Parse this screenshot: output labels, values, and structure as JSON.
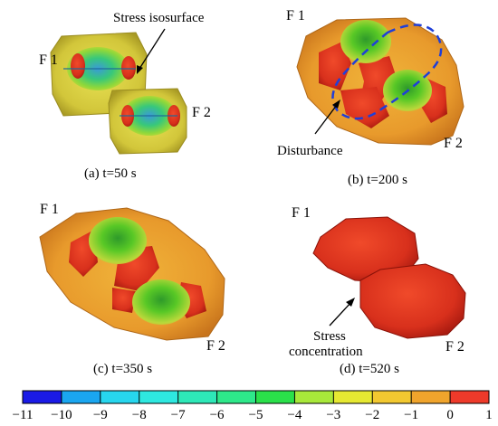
{
  "panels": [
    {
      "caption": "(a) t=50 s",
      "f1": "F 1",
      "f2": "F 2",
      "annotation": "Stress isosurface"
    },
    {
      "caption": "(b) t=200 s",
      "f1": "F 1",
      "f2": "F 2",
      "annotation": "Disturbance"
    },
    {
      "caption": "(c) t=350 s",
      "f1": "F 1",
      "f2": "F 2"
    },
    {
      "caption": "(d) t=520 s",
      "f1": "F 1",
      "f2": "F 2",
      "annotation_lines": [
        "Stress",
        "concentration"
      ]
    }
  ],
  "colorbar": {
    "ticks": [
      "−11",
      "−10",
      "−9",
      "−8",
      "−7",
      "−6",
      "−5",
      "−4",
      "−3",
      "−2",
      "−1",
      "0",
      "1"
    ],
    "colors": [
      "#1a1ae6",
      "#1aa6f0",
      "#27d6ee",
      "#2ee8e0",
      "#2ee8b8",
      "#2ee88a",
      "#2ae04a",
      "#a8e83a",
      "#e6e832",
      "#f2c830",
      "#f0a42c",
      "#ee3a2a"
    ]
  },
  "colors": {
    "isosurface_yellow": "#d8d23a",
    "orange": "#e8a02c",
    "red": "#e8321e",
    "green": "#5ad02a",
    "disturbance_outline": "#1f3fd8"
  }
}
